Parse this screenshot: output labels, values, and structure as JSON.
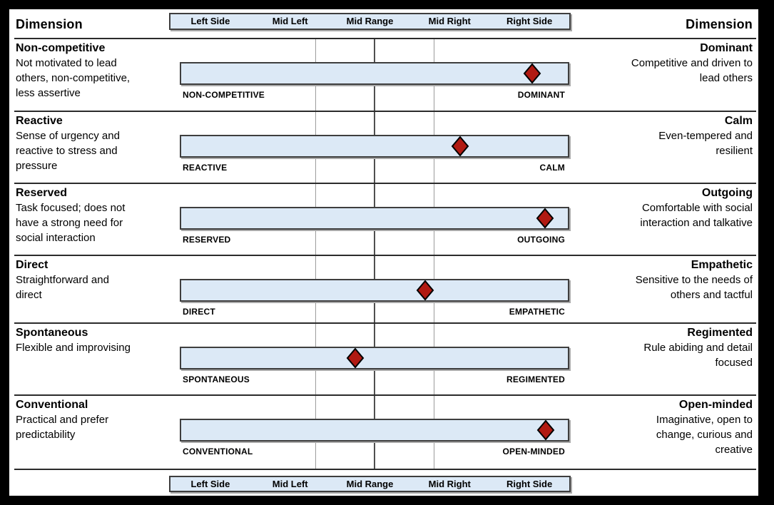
{
  "header": {
    "dimension_title_left": "Dimension",
    "dimension_title_right": "Dimension"
  },
  "scale": {
    "labels": [
      "Left Side",
      "Mid Left",
      "Mid Range",
      "Mid Right",
      "Right Side"
    ],
    "gridline_pcts": [
      34.8,
      49.9,
      65.2
    ]
  },
  "colors": {
    "bar_fill": "#dce9f6",
    "bar_border": "#3e3e3e",
    "marker_fill": "#b11a12",
    "marker_stroke": "#000000",
    "grid_light": "#9c9c9c",
    "grid_dark": "#4f4f4f"
  },
  "rows": [
    {
      "left_title": "Non-competitive",
      "left_desc": "Not motivated to lead\nothers, non-competitive,\nless assertive",
      "bar_left_label": "NON-COMPETITIVE",
      "bar_right_label": "DOMINANT",
      "marker_pct": 90.5,
      "right_title": "Dominant",
      "right_desc": "Competitive and driven to\nlead others"
    },
    {
      "left_title": "Reactive",
      "left_desc": "Sense of urgency and\nreactive to stress and\npressure",
      "bar_left_label": "REACTIVE",
      "bar_right_label": "CALM",
      "marker_pct": 72.0,
      "right_title": "Calm",
      "right_desc": "Even-tempered and\nresilient"
    },
    {
      "left_title": "Reserved",
      "left_desc": "Task focused; does not\nhave a strong need for\nsocial interaction",
      "bar_left_label": "RESERVED",
      "bar_right_label": "OUTGOING",
      "marker_pct": 93.8,
      "right_title": "Outgoing",
      "right_desc": "Comfortable with social\ninteraction and talkative"
    },
    {
      "left_title": "Direct",
      "left_desc": "Straightforward and\ndirect",
      "bar_left_label": "DIRECT",
      "bar_right_label": "EMPATHETIC",
      "marker_pct": 63.0,
      "right_title": "Empathetic",
      "right_desc": "Sensitive to the needs of\nothers and tactful"
    },
    {
      "left_title": "Spontaneous",
      "left_desc": "Flexible and improvising",
      "bar_left_label": "SPONTANEOUS",
      "bar_right_label": "REGIMENTED",
      "marker_pct": 45.0,
      "right_title": "Regimented",
      "right_desc": "Rule abiding and detail\nfocused"
    },
    {
      "left_title": "Conventional",
      "left_desc": "Practical and prefer\npredictability",
      "bar_left_label": "CONVENTIONAL",
      "bar_right_label": "OPEN-MINDED",
      "marker_pct": 93.9,
      "right_title": "Open-minded",
      "right_desc": "Imaginative, open to\nchange, curious and\ncreative"
    }
  ],
  "chart_data": {
    "type": "scatter",
    "marker": "diamond",
    "x_axis": {
      "labels": [
        "Left Side",
        "Mid Left",
        "Mid Range",
        "Mid Right",
        "Right Side"
      ],
      "range_pct": [
        0,
        100
      ],
      "gridlines_pct": [
        34.8,
        49.9,
        65.2
      ]
    },
    "series": [
      {
        "dimension_left": "Non-competitive",
        "dimension_right": "Dominant",
        "marker_pct": 90.5,
        "zone": "Right Side"
      },
      {
        "dimension_left": "Reactive",
        "dimension_right": "Calm",
        "marker_pct": 72.0,
        "zone": "Mid Right"
      },
      {
        "dimension_left": "Reserved",
        "dimension_right": "Outgoing",
        "marker_pct": 93.8,
        "zone": "Right Side"
      },
      {
        "dimension_left": "Direct",
        "dimension_right": "Empathetic",
        "marker_pct": 63.0,
        "zone": "Mid Right"
      },
      {
        "dimension_left": "Spontaneous",
        "dimension_right": "Regimented",
        "marker_pct": 45.0,
        "zone": "Mid Range"
      },
      {
        "dimension_left": "Conventional",
        "dimension_right": "Open-minded",
        "marker_pct": 93.9,
        "zone": "Right Side"
      }
    ]
  }
}
